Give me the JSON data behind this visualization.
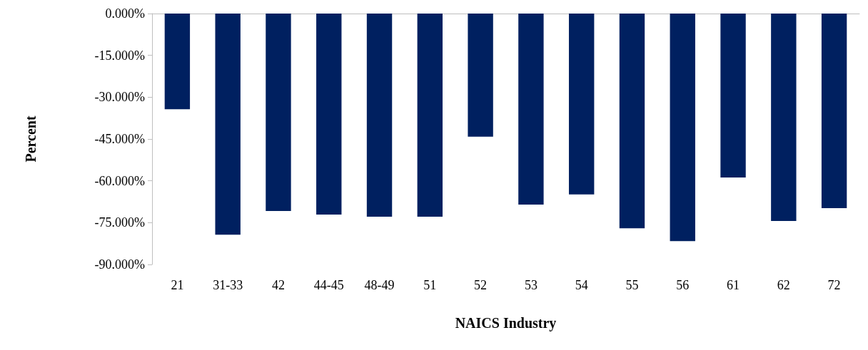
{
  "chart_data": {
    "type": "bar",
    "xlabel": "NAICS Industry",
    "ylabel": "Percent",
    "categories": [
      "21",
      "31-33",
      "42",
      "44-45",
      "48-49",
      "51",
      "52",
      "53",
      "54",
      "55",
      "56",
      "61",
      "62",
      "72"
    ],
    "values": [
      -34.3,
      -79.3,
      -70.8,
      -72.1,
      -72.9,
      -72.9,
      -44.2,
      -68.5,
      -64.9,
      -77.0,
      -81.6,
      -58.8,
      -74.4,
      -69.8
    ],
    "color": "#002060",
    "ylim": [
      -90,
      0
    ],
    "yticks": [
      {
        "value": -90,
        "label": "-90.000%"
      },
      {
        "value": -75,
        "label": "-75.000%"
      },
      {
        "value": -60,
        "label": "-60.000%"
      },
      {
        "value": -45,
        "label": "-45.000%"
      },
      {
        "value": -30,
        "label": "-30.000%"
      },
      {
        "value": -15,
        "label": "-15.000%"
      },
      {
        "value": 0,
        "label": "0.000%"
      }
    ],
    "grid": false
  }
}
